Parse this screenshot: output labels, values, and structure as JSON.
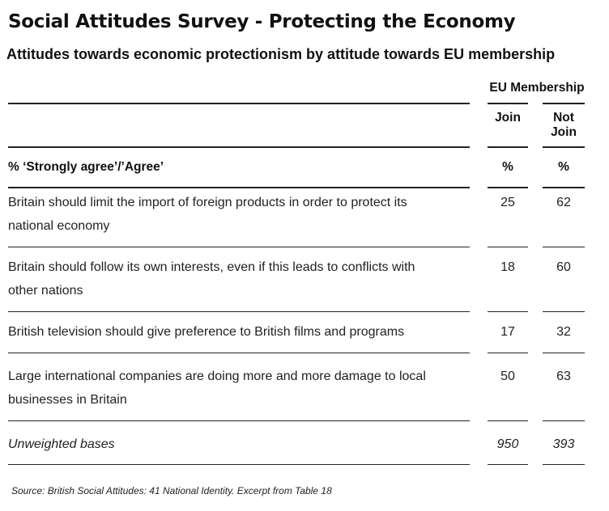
{
  "title": "Social Attitudes Survey -  Protecting the Economy",
  "subtitle": "Attitudes towards economic protectionism by attitude towards EU membership",
  "table": {
    "group_header": "EU Membership",
    "col_join": "Join",
    "col_notjoin_line1": "Not",
    "col_notjoin_line2": "Join",
    "measure_label": "% ‘Strongly agree’/’Agree’",
    "unit_join": "%",
    "unit_notjoin": "%",
    "rows": [
      {
        "line1": "Britain should limit the import of foreign products in order to protect its",
        "line2": "national economy",
        "join": "25",
        "not_join": "62"
      },
      {
        "line1": "Britain should follow its own interests, even if this leads to conflicts with",
        "line2": "other nations",
        "join": "18",
        "not_join": "60"
      },
      {
        "line1": "British television should give preference to British films and programs",
        "line2": "",
        "join": "17",
        "not_join": "32"
      },
      {
        "line1": "Large international companies are doing more and more damage to local",
        "line2": "businesses in Britain",
        "join": "50",
        "not_join": "63"
      }
    ],
    "bases_label": "Unweighted bases",
    "bases_join": "950",
    "bases_notjoin": "393"
  },
  "source": "Source:  British Social Attitudes: 41 National Identity.  Excerpt from Table 18"
}
